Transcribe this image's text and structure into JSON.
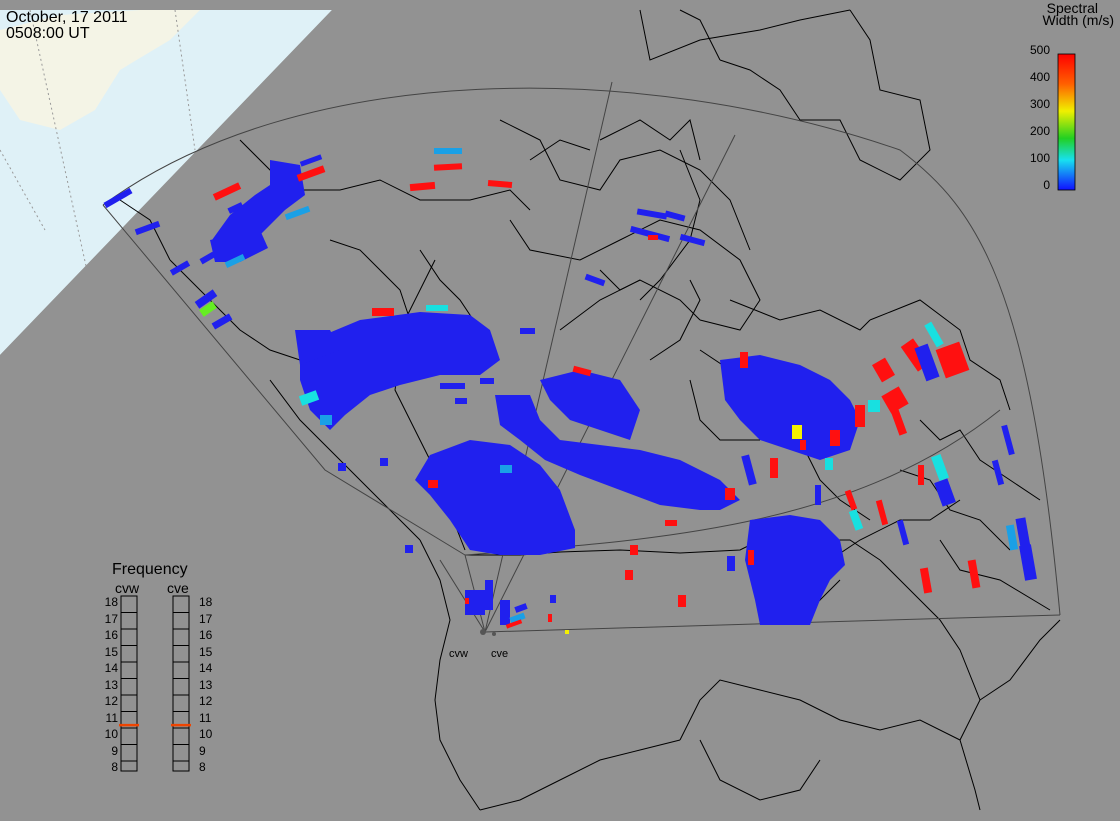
{
  "header": {
    "date": "October, 17 2011",
    "time": "0508:00 UT"
  },
  "colorbar": {
    "title_line1": "Spectral",
    "title_line2": "Width (m/s)",
    "ticks": [
      "500",
      "400",
      "300",
      "200",
      "100",
      "0"
    ],
    "min": 0,
    "max": 500
  },
  "frequency_panel": {
    "title": "Frequency",
    "left_name": "cvw",
    "right_name": "cve",
    "ticks": [
      "18",
      "17",
      "16",
      "15",
      "14",
      "13",
      "12",
      "11",
      "10",
      "9",
      "8"
    ],
    "left_value_mhz": 10.6,
    "right_value_mhz": 10.6,
    "marker_color": "#ee4400"
  },
  "radar_sites": {
    "west": "cvw",
    "east": "cve"
  },
  "colors": {
    "background": "#929292",
    "sea_ice": "#dff1f7",
    "land_shade": "#f4f4e6",
    "map_lines": "#000000",
    "fov_lines": "#444444",
    "scatter_low": "#2020ee",
    "scatter_mid_low": "#1aa0e6",
    "scatter_cyan": "#18e0e0",
    "scatter_green": "#66ee22",
    "scatter_yellow": "#f4f000",
    "scatter_high": "#ff1010"
  }
}
